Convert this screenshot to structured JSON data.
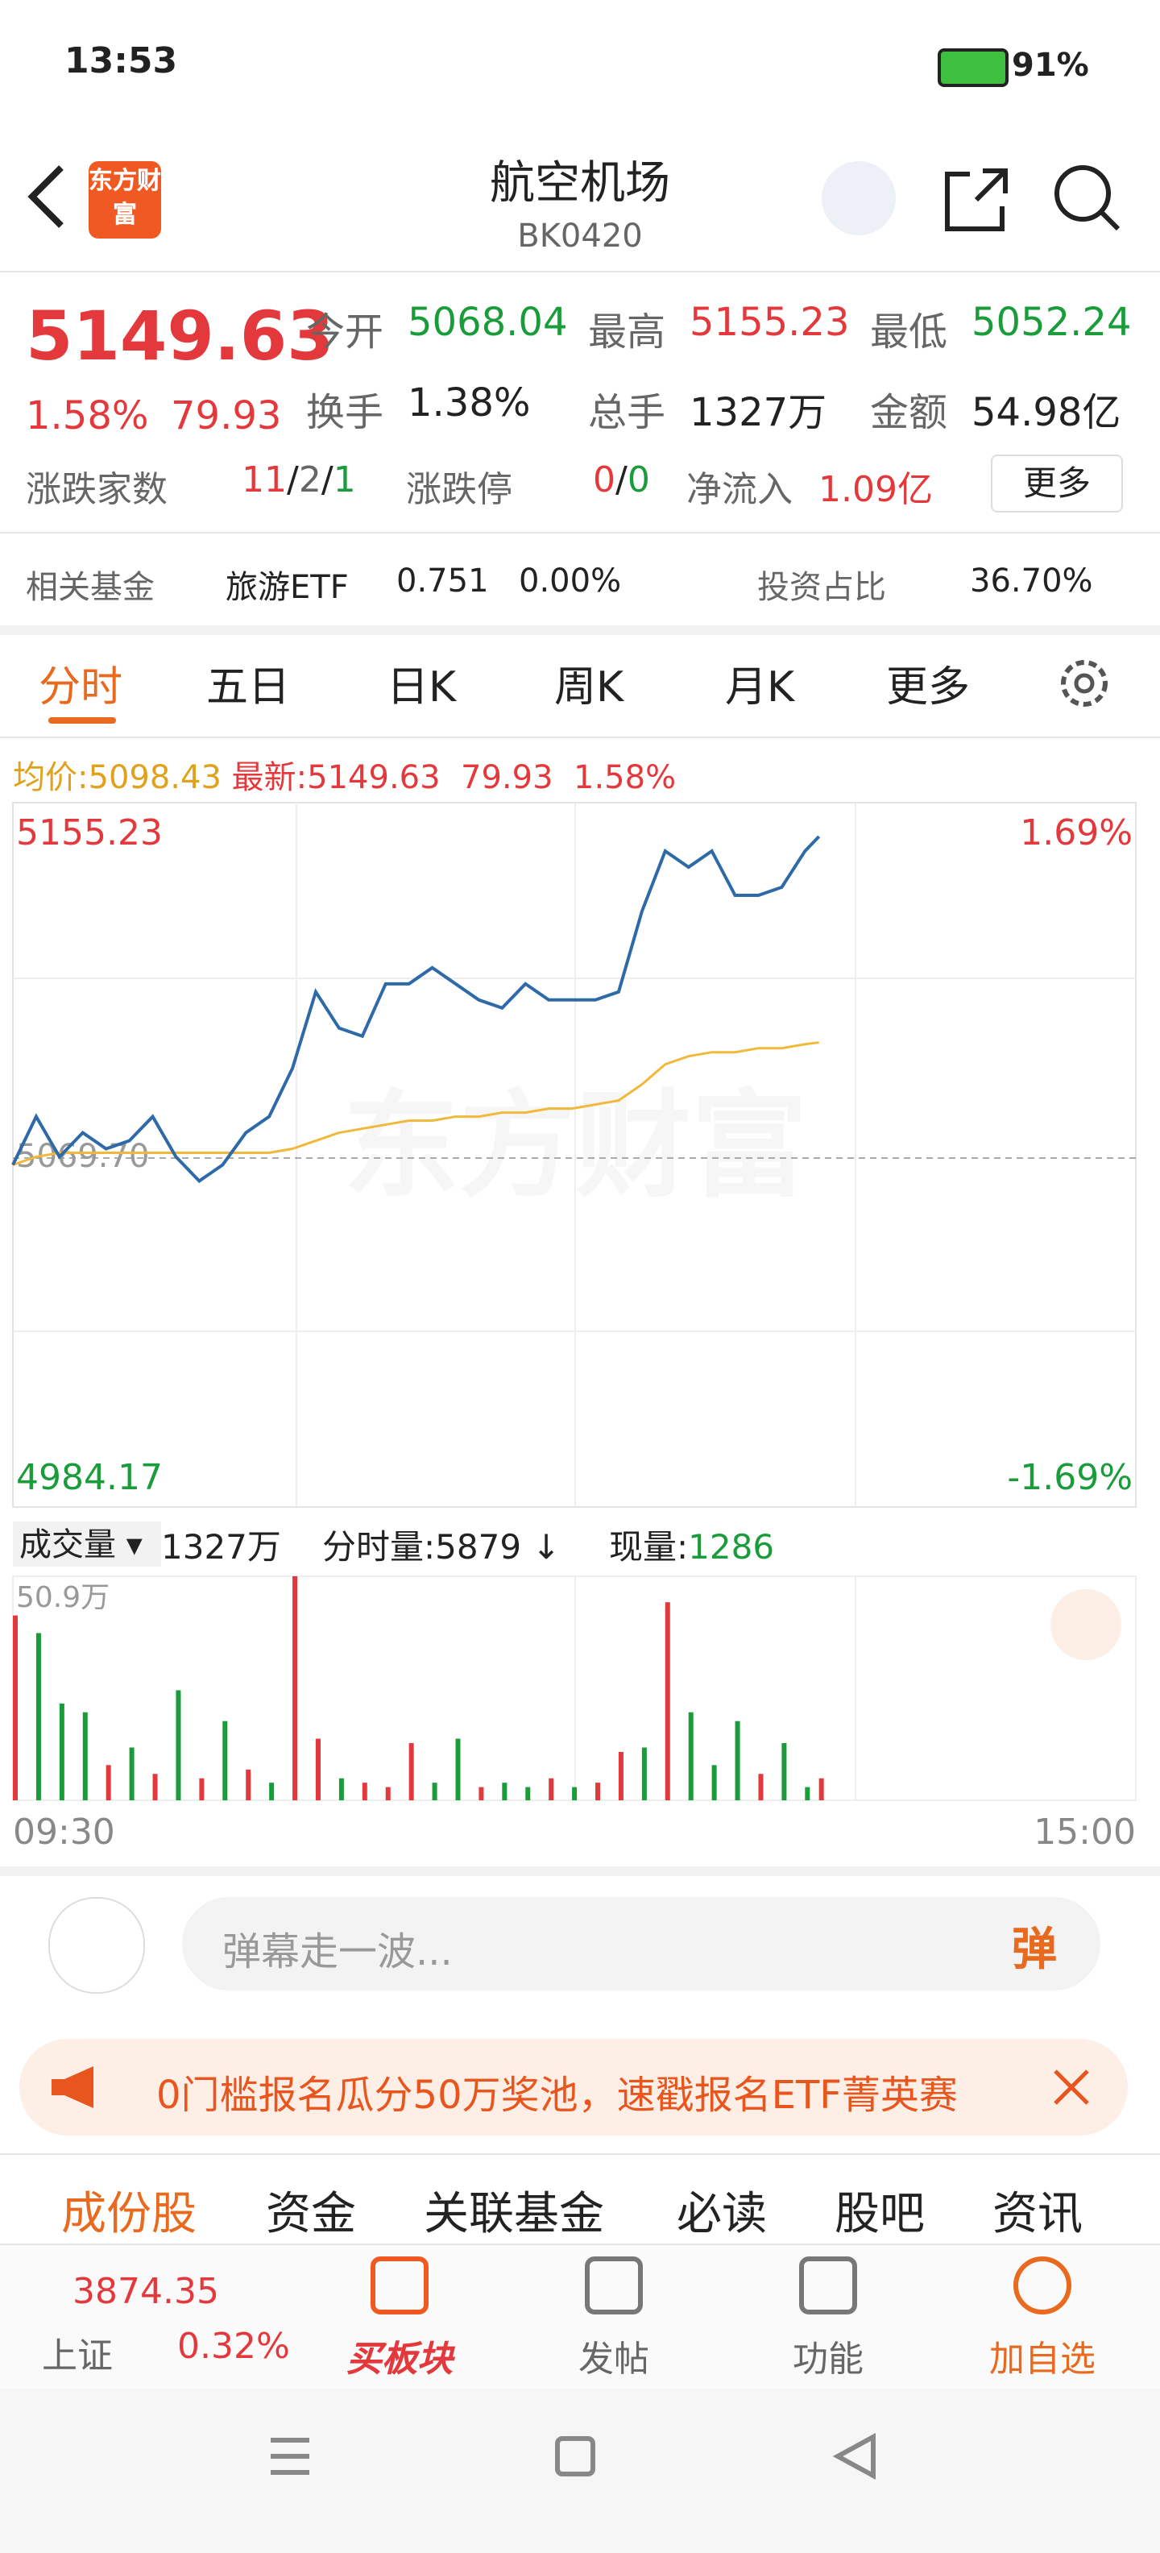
{
  "status": {
    "time": "13:53",
    "battery": "91%"
  },
  "header": {
    "logo": "东方财富",
    "title": "航空机场",
    "code": "BK0420"
  },
  "quote": {
    "price": "5149.63",
    "change_pct": "1.58%",
    "change": "79.93",
    "fields": [
      {
        "label": "今开",
        "value": "5068.04"
      },
      {
        "label": "最高",
        "value": "5155.23"
      },
      {
        "label": "最低",
        "value": "5052.24"
      },
      {
        "label": "换手",
        "value": "1.38%"
      },
      {
        "label": "总手",
        "value": "1327万"
      },
      {
        "label": "金额",
        "value": "54.98亿"
      }
    ]
  },
  "breadth": {
    "label": "涨跌家数",
    "up": "11",
    "flat": "2",
    "down": "1",
    "limit_label": "涨跌停",
    "limit_up": "0",
    "limit_down": "0",
    "inflow_label": "净流入",
    "inflow": "1.09亿",
    "more": "更多"
  },
  "fund": {
    "label": "相关基金",
    "name": "旅游ETF",
    "price": "0.751",
    "change": "0.00%",
    "ratio_label": "投资占比",
    "ratio": "36.70%"
  },
  "tabs": [
    "分时",
    "五日",
    "日K",
    "周K",
    "月K",
    "更多"
  ],
  "legend": {
    "avg_label": "均价:",
    "avg": "5098.43",
    "last_label": "最新:",
    "last": "5149.63",
    "change": "79.93",
    "change_pct": "1.58%"
  },
  "chart": {
    "type": "line",
    "watermark": "东方财富",
    "ylim": [
      4984.17,
      5155.23
    ],
    "prev_close": {
      "value": 5069.7,
      "label": "5069.70"
    },
    "pct_top": "1.69%",
    "pct_bottom": "-1.69%",
    "xlim": [
      0,
      241
    ],
    "x": [
      0,
      5,
      10,
      15,
      20,
      25,
      30,
      35,
      40,
      45,
      50,
      55,
      60,
      65,
      70,
      75,
      80,
      85,
      90,
      95,
      100,
      105,
      110,
      115,
      120,
      125,
      130,
      135,
      140,
      145,
      150,
      155,
      160,
      165,
      170,
      173
    ],
    "price": [
      5068,
      5080,
      5070,
      5076,
      5072,
      5074,
      5080,
      5070,
      5064,
      5068,
      5076,
      5080,
      5092,
      5111,
      5102,
      5100,
      5113,
      5113,
      5117,
      5113,
      5109,
      5107,
      5113,
      5109,
      5109,
      5109,
      5111,
      5131,
      5146,
      5142,
      5146,
      5135,
      5135,
      5137,
      5146,
      5149.63
    ],
    "price_color": "#2f6aa8",
    "avg": [
      5068,
      5070,
      5071,
      5071,
      5071,
      5071,
      5071,
      5071,
      5071,
      5071,
      5071,
      5071,
      5072,
      5074,
      5076,
      5077,
      5078,
      5079,
      5079,
      5080,
      5080,
      5081,
      5081,
      5082,
      5082,
      5083,
      5084,
      5088,
      5093,
      5095,
      5096,
      5096,
      5097,
      5097,
      5098,
      5098.43
    ],
    "avg_color": "#f0b93a"
  },
  "volume": {
    "label": "成交量",
    "total": "1327万",
    "tick_label": "分时量:",
    "tick": "5879",
    "now_label": "现量:",
    "now": "1286",
    "ylim": [
      0,
      50.9
    ],
    "max_label": "50.9万",
    "x": [
      0,
      5,
      10,
      15,
      20,
      25,
      30,
      35,
      40,
      45,
      50,
      55,
      60,
      65,
      70,
      75,
      80,
      85,
      90,
      95,
      100,
      105,
      110,
      115,
      120,
      125,
      130,
      135,
      140,
      145,
      150,
      155,
      160,
      165,
      170,
      173
    ],
    "values": [
      42,
      38,
      22,
      20,
      8,
      12,
      6,
      25,
      5,
      18,
      7,
      4,
      50.9,
      14,
      5,
      4,
      3,
      13,
      4,
      14,
      3,
      4,
      3,
      5,
      3,
      4,
      11,
      12,
      45,
      20,
      8,
      18,
      6,
      13,
      3,
      5
    ],
    "colors": [
      "#e4393c",
      "#1a9c3a",
      "#1a9c3a",
      "#1a9c3a",
      "#e4393c",
      "#1a9c3a",
      "#e4393c",
      "#1a9c3a",
      "#e4393c",
      "#1a9c3a",
      "#e4393c",
      "#1a9c3a",
      "#e4393c",
      "#e4393c",
      "#1a9c3a",
      "#e4393c",
      "#e4393c",
      "#e4393c",
      "#1a9c3a",
      "#1a9c3a",
      "#e4393c",
      "#1a9c3a",
      "#1a9c3a",
      "#e4393c",
      "#1a9c3a",
      "#e4393c",
      "#e4393c",
      "#1a9c3a",
      "#e4393c",
      "#1a9c3a",
      "#1a9c3a",
      "#1a9c3a",
      "#e4393c",
      "#1a9c3a",
      "#1a9c3a",
      "#e4393c"
    ],
    "start": "09:30",
    "end": "15:00"
  },
  "comment": {
    "placeholder": "弹幕走一波...",
    "danmu": "弹"
  },
  "banner": "0门槛报名瓜分50万奖池，速戳报名ETF菁英赛",
  "bottom_tabs": [
    "成份股",
    "资金",
    "关联基金",
    "必读",
    "股吧",
    "资讯"
  ],
  "nav": {
    "index_value": "3874.35",
    "index_name": "上证",
    "index_change": "0.32%",
    "buttons": [
      "买板块",
      "发帖",
      "功能",
      "加自选"
    ]
  }
}
